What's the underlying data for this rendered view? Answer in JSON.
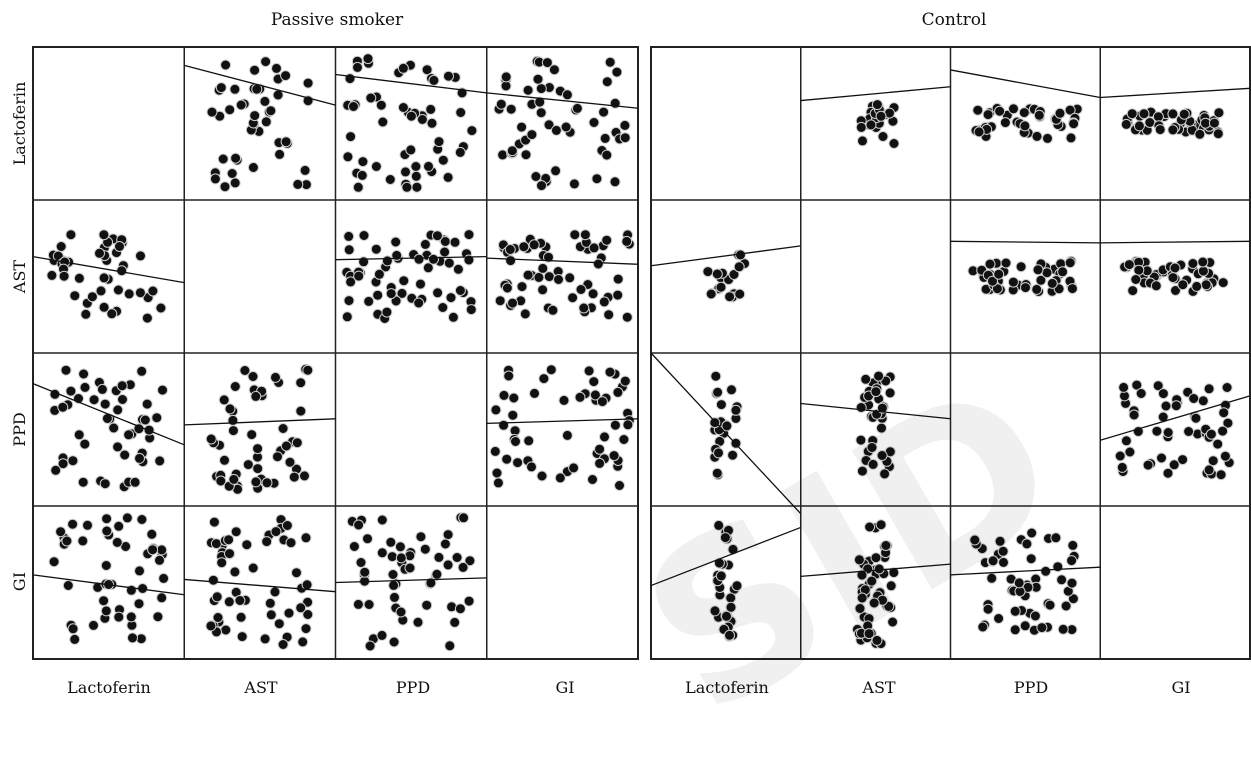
{
  "panels": [
    {
      "title": "Passive smoker",
      "key": "passive"
    },
    {
      "title": "Control",
      "key": "control"
    }
  ],
  "variables": [
    "Lactoferin",
    "AST",
    "PPD",
    "GI"
  ],
  "watermark": "SID",
  "chart_data": [
    {
      "type": "scatter",
      "title": "Passive smoker",
      "variables": [
        "Lactoferin",
        "AST",
        "PPD",
        "GI"
      ],
      "cells": [
        {
          "row": "Lactoferin",
          "col": "AST",
          "n": 45,
          "spread_x": 0.7,
          "spread_y": 0.85,
          "trend": [
            0.12,
            0.38
          ]
        },
        {
          "row": "Lactoferin",
          "col": "PPD",
          "n": 55,
          "spread_x": 0.85,
          "spread_y": 0.85,
          "trend": [
            0.18,
            0.3
          ]
        },
        {
          "row": "Lactoferin",
          "col": "GI",
          "n": 55,
          "spread_x": 0.9,
          "spread_y": 0.85,
          "trend": [
            0.3,
            0.4
          ]
        },
        {
          "row": "AST",
          "col": "Lactoferin",
          "n": 45,
          "spread_x": 0.75,
          "spread_y": 0.55,
          "trend": [
            0.37,
            0.54
          ]
        },
        {
          "row": "AST",
          "col": "PPD",
          "n": 60,
          "spread_x": 0.85,
          "spread_y": 0.55,
          "trend": [
            0.39,
            0.37
          ]
        },
        {
          "row": "AST",
          "col": "GI",
          "n": 60,
          "spread_x": 0.9,
          "spread_y": 0.55,
          "trend": [
            0.38,
            0.42
          ]
        },
        {
          "row": "PPD",
          "col": "Lactoferin",
          "n": 50,
          "spread_x": 0.75,
          "spread_y": 0.8,
          "trend": [
            0.2,
            0.6
          ]
        },
        {
          "row": "PPD",
          "col": "AST",
          "n": 50,
          "spread_x": 0.65,
          "spread_y": 0.8,
          "trend": [
            0.47,
            0.43
          ]
        },
        {
          "row": "PPD",
          "col": "GI",
          "n": 55,
          "spread_x": 0.9,
          "spread_y": 0.8,
          "trend": [
            0.46,
            0.43
          ]
        },
        {
          "row": "GI",
          "col": "Lactoferin",
          "n": 50,
          "spread_x": 0.75,
          "spread_y": 0.85,
          "trend": [
            0.45,
            0.58
          ]
        },
        {
          "row": "GI",
          "col": "AST",
          "n": 55,
          "spread_x": 0.65,
          "spread_y": 0.85,
          "trend": [
            0.48,
            0.56
          ]
        },
        {
          "row": "GI",
          "col": "PPD",
          "n": 55,
          "spread_x": 0.8,
          "spread_y": 0.85,
          "trend": [
            0.5,
            0.47
          ]
        }
      ]
    },
    {
      "type": "scatter",
      "title": "Control",
      "variables": [
        "Lactoferin",
        "AST",
        "PPD",
        "GI"
      ],
      "cells": [
        {
          "row": "Lactoferin",
          "col": "AST",
          "n": 25,
          "spread_x": 0.25,
          "spread_y": 0.3,
          "trend": [
            0.35,
            0.26
          ]
        },
        {
          "row": "Lactoferin",
          "col": "PPD",
          "n": 40,
          "spread_x": 0.7,
          "spread_y": 0.2,
          "trend": [
            0.15,
            0.33
          ]
        },
        {
          "row": "Lactoferin",
          "col": "GI",
          "n": 45,
          "spread_x": 0.7,
          "spread_y": 0.15,
          "trend": [
            0.33,
            0.27
          ]
        },
        {
          "row": "AST",
          "col": "Lactoferin",
          "n": 18,
          "spread_x": 0.25,
          "spread_y": 0.3,
          "trend": [
            0.43,
            0.3
          ]
        },
        {
          "row": "AST",
          "col": "PPD",
          "n": 45,
          "spread_x": 0.7,
          "spread_y": 0.2,
          "trend": [
            0.27,
            0.28
          ]
        },
        {
          "row": "AST",
          "col": "GI",
          "n": 45,
          "spread_x": 0.7,
          "spread_y": 0.2,
          "trend": [
            0.28,
            0.27
          ]
        },
        {
          "row": "PPD",
          "col": "Lactoferin",
          "n": 25,
          "spread_x": 0.15,
          "spread_y": 0.7,
          "trend": [
            0.0,
            1.05
          ]
        },
        {
          "row": "PPD",
          "col": "AST",
          "n": 35,
          "spread_x": 0.2,
          "spread_y": 0.7,
          "trend": [
            0.33,
            0.43
          ]
        },
        {
          "row": "PPD",
          "col": "GI",
          "n": 55,
          "spread_x": 0.75,
          "spread_y": 0.6,
          "trend": [
            0.57,
            0.28
          ]
        },
        {
          "row": "GI",
          "col": "Lactoferin",
          "n": 30,
          "spread_x": 0.15,
          "spread_y": 0.75,
          "trend": [
            0.52,
            0.14
          ]
        },
        {
          "row": "GI",
          "col": "AST",
          "n": 50,
          "spread_x": 0.25,
          "spread_y": 0.8,
          "trend": [
            0.46,
            0.38
          ]
        },
        {
          "row": "GI",
          "col": "PPD",
          "n": 55,
          "spread_x": 0.7,
          "spread_y": 0.65,
          "trend": [
            0.45,
            0.4
          ]
        }
      ]
    }
  ]
}
